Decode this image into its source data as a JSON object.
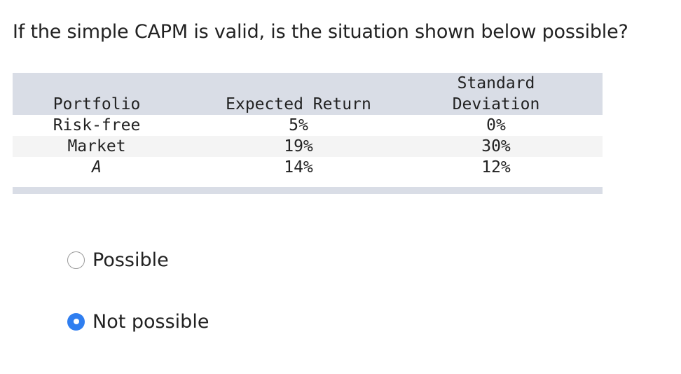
{
  "question": "If the simple CAPM is valid, is the situation shown below possible?",
  "table": {
    "headers": {
      "portfolio": "Portfolio",
      "expected_return": "Expected Return",
      "std_dev_line1": "Standard",
      "std_dev_line2": "Deviation"
    },
    "rows": [
      {
        "portfolio": "Risk-free",
        "expected_return": "5%",
        "std_dev": "0%"
      },
      {
        "portfolio": "Market",
        "expected_return": "19%",
        "std_dev": "30%"
      },
      {
        "portfolio": "A",
        "expected_return": "14%",
        "std_dev": "12%"
      }
    ]
  },
  "options": [
    {
      "label": "Possible",
      "selected": false
    },
    {
      "label": "Not possible",
      "selected": true
    }
  ],
  "colors": {
    "table_header_bg": "#d9dde6",
    "radio_selected": "#2f7ef0"
  }
}
